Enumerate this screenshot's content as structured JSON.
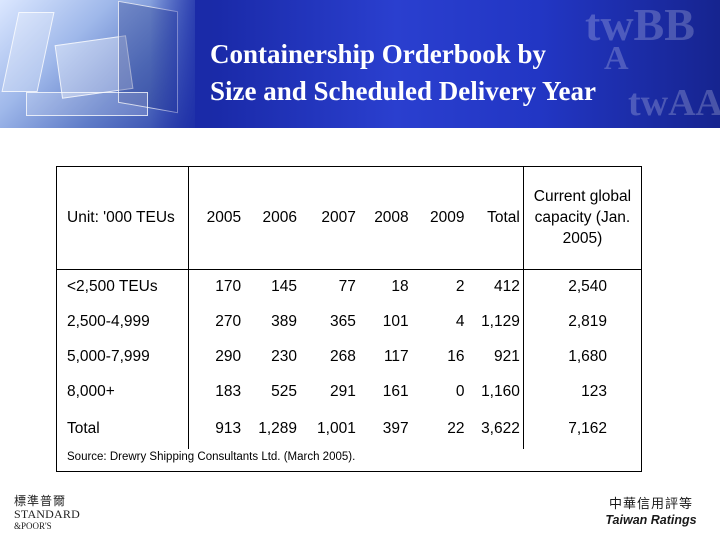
{
  "header": {
    "title_line1": "Containership Orderbook by",
    "title_line2": "Size and Scheduled Delivery Year",
    "watermark": [
      "twBB",
      "A",
      "twAA"
    ]
  },
  "table": {
    "unit_label": "Unit: '000 TEUs",
    "columns": [
      "2005",
      "2006",
      "2007",
      "2008",
      "2009",
      "Total",
      "Current global capacity (Jan. 2005)"
    ],
    "rows": [
      {
        "label": "<2,500 TEUs",
        "values": [
          "170",
          "145",
          "77",
          "18",
          "2",
          "412",
          "2,540"
        ]
      },
      {
        "label": "2,500-4,999",
        "values": [
          "270",
          "389",
          "365",
          "101",
          "4",
          "1,129",
          "2,819"
        ]
      },
      {
        "label": "5,000-7,999",
        "values": [
          "290",
          "230",
          "268",
          "117",
          "16",
          "921",
          "1,680"
        ]
      },
      {
        "label": "8,000+",
        "values": [
          "183",
          "525",
          "291",
          "161",
          "0",
          "1,160",
          "123"
        ]
      },
      {
        "label": "Total",
        "values": [
          "913",
          "1,289",
          "1,001",
          "397",
          "22",
          "3,622",
          "7,162"
        ]
      }
    ],
    "source": "Source: Drewry Shipping Consultants Ltd. (March 2005)."
  },
  "footer": {
    "sp_logo_cn": "標準普爾",
    "sp_logo_line1": "STANDARD",
    "sp_logo_line2": "&POOR'S",
    "tr_logo_cn": "中華信用評等",
    "tr_logo_en": "Taiwan Ratings"
  }
}
